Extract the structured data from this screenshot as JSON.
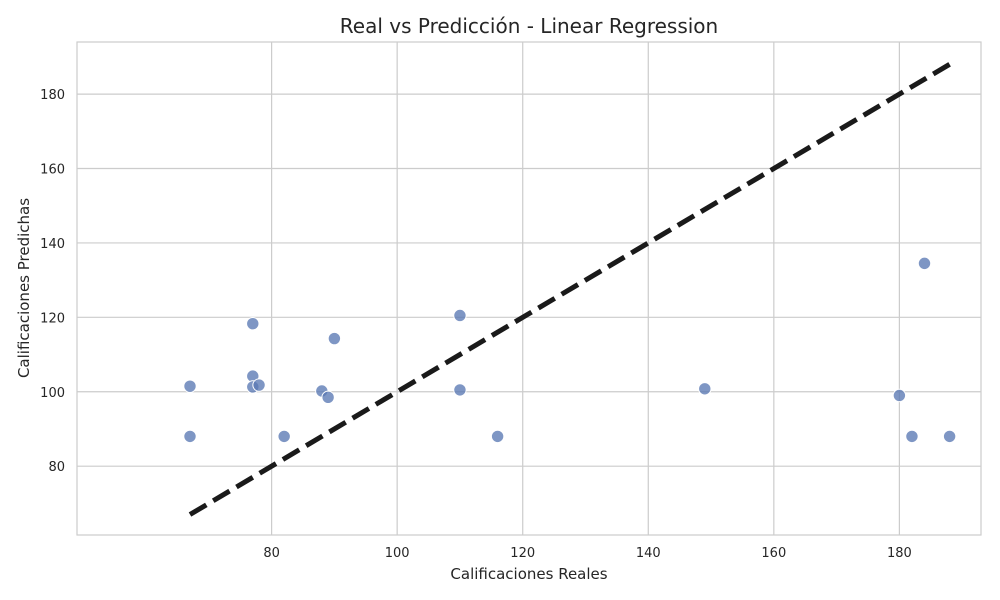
{
  "chart_data": {
    "type": "scatter",
    "title": "Real vs Predicción - Linear Regression",
    "xlabel": "Calificaciones Reales",
    "ylabel": "Calificaciones Predichas",
    "xlim": [
      49,
      193
    ],
    "ylim": [
      61.5,
      194
    ],
    "xticks": [
      80,
      100,
      120,
      140,
      160,
      180
    ],
    "yticks": [
      80,
      100,
      120,
      140,
      160,
      180
    ],
    "grid": true,
    "legend": "none",
    "point_color": "#5a78b4",
    "reference_line": {
      "x": [
        67,
        188
      ],
      "y": [
        67,
        188
      ],
      "style": "dashed",
      "color": "#1a1a1a"
    },
    "series": [
      {
        "points": [
          [
            67,
            101.5
          ],
          [
            67,
            88
          ],
          [
            77,
            118.3
          ],
          [
            77,
            104.2
          ],
          [
            77,
            101.3
          ],
          [
            78,
            101.8
          ],
          [
            82,
            88
          ],
          [
            88,
            100.2
          ],
          [
            89,
            98.5
          ],
          [
            90,
            114.3
          ],
          [
            110,
            120.5
          ],
          [
            110,
            100.5
          ],
          [
            116,
            88
          ],
          [
            149,
            100.8
          ],
          [
            180,
            99
          ],
          [
            182,
            88
          ],
          [
            184,
            134.5
          ],
          [
            188,
            88
          ]
        ]
      }
    ]
  }
}
